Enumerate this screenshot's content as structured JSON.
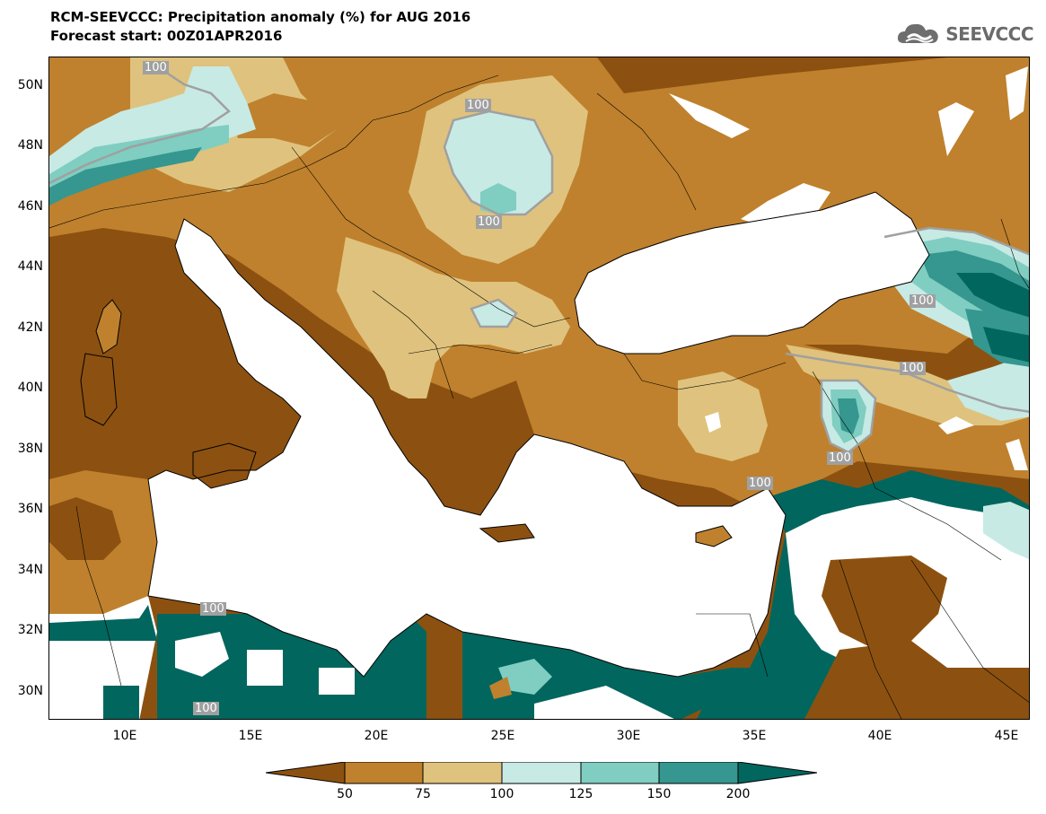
{
  "header": {
    "title": "RCM-SEEVCCC: Precipitation anomaly (%) for AUG 2016",
    "subtitle": "Forecast start: 00Z01APR2016"
  },
  "logo": {
    "text": "SEEVCCC",
    "icon": "cloud-icon"
  },
  "axes": {
    "lat_labels": [
      "50N",
      "48N",
      "46N",
      "44N",
      "42N",
      "40N",
      "38N",
      "36N",
      "34N",
      "32N",
      "30N"
    ],
    "lon_labels": [
      "10E",
      "15E",
      "20E",
      "25E",
      "30E",
      "35E",
      "40E",
      "45E"
    ],
    "lon_range": [
      7,
      46
    ],
    "lat_range": [
      29,
      51
    ]
  },
  "contour_labels": [
    "100",
    "100",
    "100",
    "100",
    "100",
    "100",
    "100",
    "100",
    "100",
    "100"
  ],
  "legend": {
    "ticks": [
      "50",
      "75",
      "100",
      "125",
      "150",
      "200"
    ],
    "colors": [
      "#8c5110",
      "#bf812d",
      "#dfc27d",
      "#c7eae5",
      "#80cdc1",
      "#35978f",
      "#01665e"
    ]
  }
}
